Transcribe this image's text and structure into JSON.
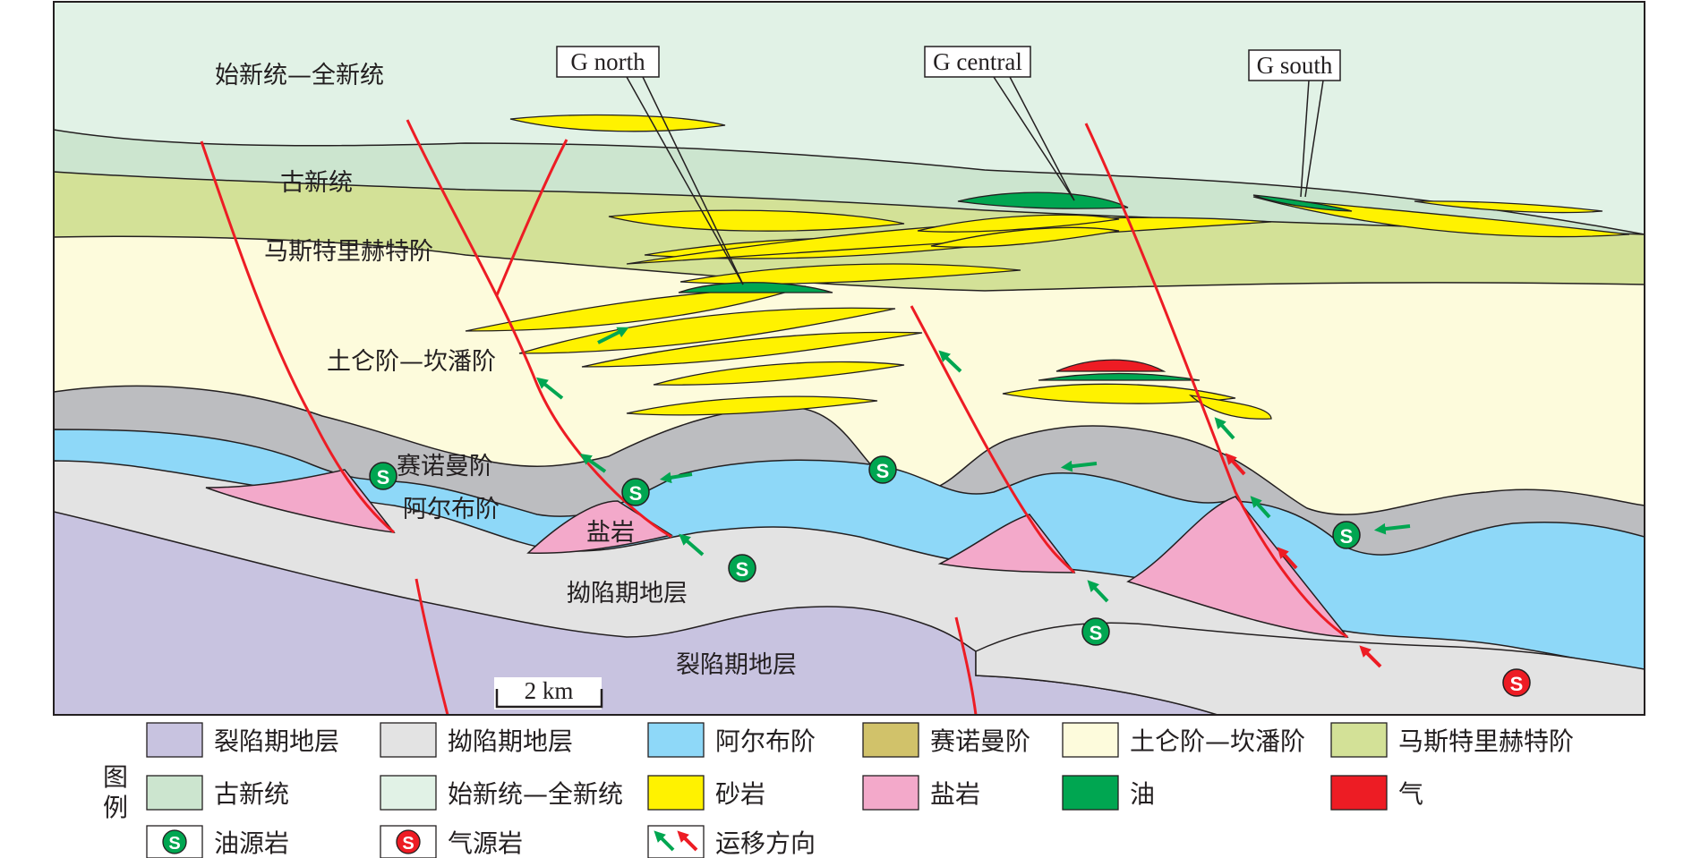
{
  "section": {
    "units": {
      "eocene_holocene": "始新统—全新统",
      "paleocene": "古新统",
      "maastrichtian": "马斯特里赫特阶",
      "turonian_campanian": "土仑阶—坎潘阶",
      "cenomanian": "赛诺曼阶",
      "albian": "阿尔布阶",
      "salt": "盐岩",
      "sag": "拗陷期地层",
      "rift": "裂陷期地层"
    },
    "fields": {
      "north": "G north",
      "central": "G central",
      "south": "G south"
    },
    "scale": "2 km",
    "source_symbol": "S"
  },
  "legend": {
    "title_1": "图",
    "title_2": "例",
    "items": [
      {
        "label": "裂陷期地层",
        "color": "#c8c3e0"
      },
      {
        "label": "拗陷期地层",
        "color": "#e3e3e3"
      },
      {
        "label": "阿尔布阶",
        "color": "#8ed8f8"
      },
      {
        "label": "赛诺曼阶",
        "color": "#d1c26a"
      },
      {
        "label": "土仑阶—坎潘阶",
        "color": "#fdfbdc"
      },
      {
        "label": "马斯特里赫特阶",
        "color": "#d3e197"
      },
      {
        "label": "古新统",
        "color": "#cce5cf"
      },
      {
        "label": "始新统—全新统",
        "color": "#e1f2e6"
      },
      {
        "label": "砂岩",
        "color": "#fff200"
      },
      {
        "label": "盐岩",
        "color": "#f3a9ca"
      },
      {
        "label": "油",
        "color": "#00a651"
      },
      {
        "label": "气",
        "color": "#ed1c24"
      },
      {
        "label": "油源岩",
        "color": "#00a651"
      },
      {
        "label": "气源岩",
        "color": "#ed1c24"
      },
      {
        "label": "运移方向",
        "color": ""
      }
    ]
  },
  "colors": {
    "fault": "#ed1c24",
    "grey_layer": "#bcbdc0",
    "outline": "#231f20"
  }
}
